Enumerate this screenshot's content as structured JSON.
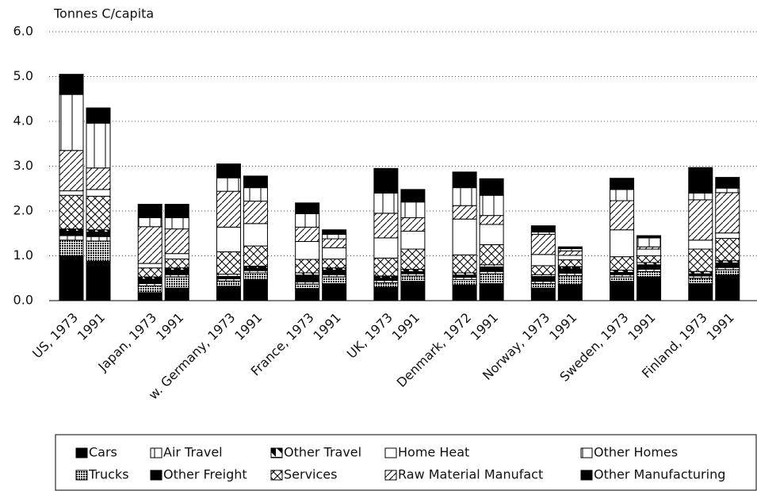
{
  "chart_data": {
    "type": "stacked-bar",
    "y_label": "Tonnes C/capita",
    "categories": [
      "US, 1973",
      "1991",
      "Japan, 1973",
      "1991",
      "w. Germany, 1973",
      "1991",
      "France, 1973",
      "1991",
      "UK, 1973",
      "1991",
      "Denmark, 1972",
      "1991",
      "Norway, 1973",
      "1991",
      "Sweden, 1973",
      "1991",
      "Finland, 1973",
      "1991"
    ],
    "ylim": [
      0,
      6
    ],
    "yticks": [
      {
        "value": 0,
        "label": "0.0"
      },
      {
        "value": 1,
        "label": "1.0"
      },
      {
        "value": 2,
        "label": "2.0"
      },
      {
        "value": 3,
        "label": "3.0"
      },
      {
        "value": 4,
        "label": "4.0"
      },
      {
        "value": 5,
        "label": "5.0"
      },
      {
        "value": 6,
        "label": "6.0"
      }
    ],
    "grid": true,
    "series": [
      {
        "name": "Cars",
        "color": "#000000",
        "pattern": "solid",
        "values": [
          1.0,
          0.88,
          0.18,
          0.28,
          0.32,
          0.47,
          0.27,
          0.38,
          0.3,
          0.43,
          0.35,
          0.38,
          0.28,
          0.36,
          0.43,
          0.53,
          0.38,
          0.57
        ]
      },
      {
        "name": "Trucks",
        "color": "#444444",
        "pattern": "dots",
        "values": [
          0.35,
          0.45,
          0.15,
          0.25,
          0.12,
          0.15,
          0.1,
          0.15,
          0.1,
          0.12,
          0.12,
          0.22,
          0.1,
          0.2,
          0.1,
          0.12,
          0.12,
          0.12
        ]
      },
      {
        "name": "Air Travel",
        "color": "#ffffff",
        "pattern": "grid",
        "values": [
          0.1,
          0.1,
          0.05,
          0.05,
          0.05,
          0.05,
          0.05,
          0.05,
          0.05,
          0.05,
          0.05,
          0.05,
          0.05,
          0.05,
          0.05,
          0.05,
          0.05,
          0.05
        ]
      },
      {
        "name": "Other Freight",
        "color": "#000000",
        "pattern": "solid",
        "values": [
          0.1,
          0.1,
          0.1,
          0.1,
          0.05,
          0.05,
          0.15,
          0.1,
          0.05,
          0.05,
          0.05,
          0.1,
          0.1,
          0.1,
          0.05,
          0.1,
          0.05,
          0.1
        ]
      },
      {
        "name": "Other Travel",
        "color": "#000000",
        "pattern": "halftri",
        "values": [
          0.05,
          0.05,
          0.05,
          0.05,
          0.05,
          0.05,
          0.05,
          0.05,
          0.05,
          0.05,
          0.05,
          0.05,
          0.05,
          0.05,
          0.05,
          0.05,
          0.05,
          0.05
        ]
      },
      {
        "name": "Services",
        "color": "#ffffff",
        "pattern": "cross",
        "values": [
          0.75,
          0.75,
          0.2,
          0.2,
          0.5,
          0.45,
          0.3,
          0.2,
          0.4,
          0.45,
          0.4,
          0.45,
          0.2,
          0.15,
          0.3,
          0.15,
          0.5,
          0.5
        ]
      },
      {
        "name": "Home Heat",
        "color": "#ffffff",
        "pattern": "white",
        "values": [
          0.1,
          0.15,
          0.1,
          0.12,
          0.55,
          0.5,
          0.4,
          0.25,
          0.45,
          0.4,
          0.8,
          0.45,
          0.25,
          0.1,
          0.6,
          0.15,
          0.2,
          0.12
        ]
      },
      {
        "name": "Raw Material Manufact",
        "color": "#ffffff",
        "pattern": "hatch",
        "values": [
          0.9,
          0.48,
          0.82,
          0.55,
          0.8,
          0.5,
          0.32,
          0.2,
          0.55,
          0.3,
          0.3,
          0.2,
          0.45,
          0.1,
          0.65,
          0.05,
          0.9,
          0.9
        ]
      },
      {
        "name": "Other Homes",
        "color": "#ffffff",
        "pattern": "vsplit",
        "values": [
          1.25,
          1.0,
          0.2,
          0.25,
          0.3,
          0.3,
          0.3,
          0.1,
          0.45,
          0.35,
          0.4,
          0.45,
          0.05,
          0.05,
          0.25,
          0.2,
          0.15,
          0.1
        ]
      },
      {
        "name": "Other Manufacturing",
        "color": "#000000",
        "pattern": "solid",
        "values": [
          0.45,
          0.34,
          0.3,
          0.3,
          0.31,
          0.26,
          0.24,
          0.1,
          0.55,
          0.28,
          0.35,
          0.37,
          0.14,
          0.04,
          0.25,
          0.05,
          0.57,
          0.24
        ]
      }
    ]
  }
}
